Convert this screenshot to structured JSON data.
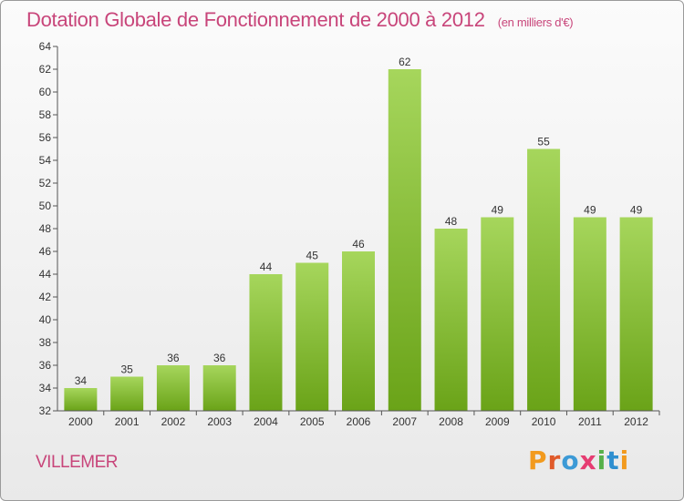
{
  "chart_data": {
    "type": "bar",
    "title": "Dotation Globale de Fonctionnement de 2000 à 2012",
    "subtitle": "(en milliers d'€)",
    "categories": [
      "2000",
      "2001",
      "2002",
      "2003",
      "2004",
      "2005",
      "2006",
      "2007",
      "2008",
      "2009",
      "2010",
      "2011",
      "2012"
    ],
    "values": [
      34,
      35,
      36,
      36,
      44,
      45,
      46,
      62,
      48,
      49,
      55,
      49,
      49
    ],
    "ylim": [
      32,
      64
    ],
    "ytick_step": 2,
    "grid": false,
    "data_labels": true,
    "bar_color_top": "#a6d65c",
    "bar_color_bottom": "#6aa318"
  },
  "commune": "VILLEMER",
  "logo_text": "Proxiti",
  "colors": {
    "title": "#c8457a",
    "axis": "#555555"
  }
}
